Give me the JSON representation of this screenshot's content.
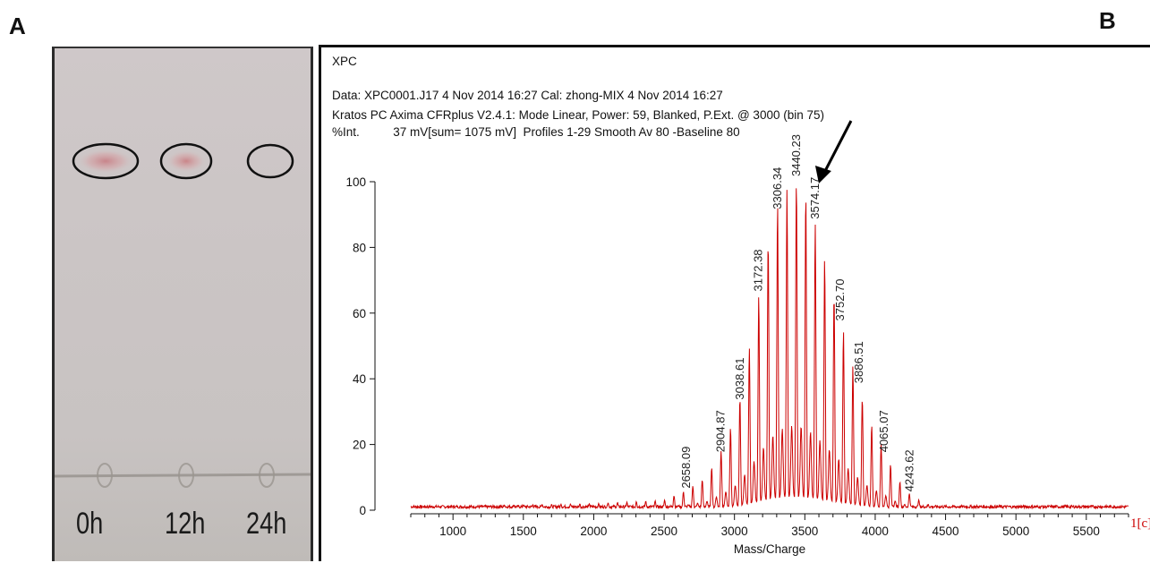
{
  "panel_a": {
    "letter": "A",
    "lanes": [
      "0h",
      "12h",
      "24h"
    ]
  },
  "panel_b": {
    "letter": "B",
    "title": "XPC",
    "header_line1": "Data: XPC0001.J17 4 Nov 2014 16:27 Cal: zhong-MIX 4 Nov 2014 16:27",
    "header_line2": "Kratos PC Axima CFRplus V2.4.1: Mode Linear, Power: 59, Blanked, P.Ext. @ 3000 (bin 75)",
    "header_line3": "%Int.          37 mV[sum= 1075 mV]  Profiles 1-29 Smooth Av 80 -Baseline 80",
    "corner_label": "1[c]",
    "colors": {
      "trace": "#cc0000",
      "axis": "#111111",
      "corner": "#cc0000",
      "spot": "#c98a8e"
    }
  },
  "chart_data": {
    "type": "line",
    "xlabel": "Mass/Charge",
    "ylabel": "%Int.",
    "xlim": [
      700,
      5800
    ],
    "ylim": [
      0,
      100
    ],
    "xticks": [
      1000,
      1500,
      2000,
      2500,
      3000,
      3500,
      4000,
      4500,
      5000,
      5500
    ],
    "yticks": [
      0,
      20,
      40,
      60,
      80,
      100
    ],
    "envelope": {
      "x": [
        700,
        2000,
        2500,
        2658,
        2800,
        2905,
        3000,
        3039,
        3100,
        3172,
        3240,
        3306,
        3380,
        3440,
        3500,
        3574,
        3650,
        3753,
        3820,
        3887,
        3950,
        4065,
        4150,
        4244,
        4350,
        4500,
        5800
      ],
      "y": [
        1,
        2,
        3,
        6,
        10,
        18,
        28,
        34,
        48,
        65,
        82,
        93,
        98,
        100,
        97,
        87,
        75,
        58,
        47,
        37,
        28,
        18,
        10,
        5,
        2,
        1,
        0
      ]
    },
    "peak_spacing": 66.9,
    "annotations": [
      {
        "label": "2658.09",
        "x": 2658,
        "y": 5
      },
      {
        "label": "2904.87",
        "x": 2905,
        "y": 16
      },
      {
        "label": "3038.61",
        "x": 3039,
        "y": 32
      },
      {
        "label": "3172.38",
        "x": 3172,
        "y": 65
      },
      {
        "label": "3306.34",
        "x": 3306,
        "y": 90
      },
      {
        "label": "3440.23",
        "x": 3440,
        "y": 100
      },
      {
        "label": "3574.17",
        "x": 3574,
        "y": 87
      },
      {
        "label": "3752.70",
        "x": 3753,
        "y": 56
      },
      {
        "label": "3886.51",
        "x": 3887,
        "y": 37
      },
      {
        "label": "4065.07",
        "x": 4065,
        "y": 16
      },
      {
        "label": "4243.62",
        "x": 4244,
        "y": 4
      }
    ],
    "arrow_target": {
      "x": 3574,
      "y": 100
    }
  }
}
